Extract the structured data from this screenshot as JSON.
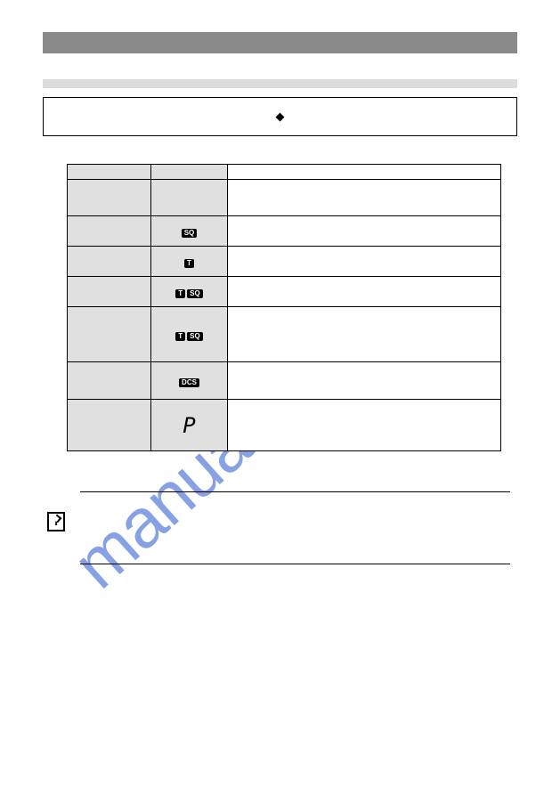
{
  "watermark": "manualshive.com",
  "sort_icon": "◆",
  "badges": {
    "sq": "SQ",
    "t": "T",
    "dcs": "DCS"
  },
  "seg_p_char": "P",
  "table": {
    "header_bg": "#bfbfbf",
    "col_bg_light": "#e0e0e0",
    "border_color": "#000000"
  },
  "colors": {
    "header_bar": "#8a8a8a",
    "light_bar": "#dcdcdc",
    "watermark": "#4870d8"
  }
}
